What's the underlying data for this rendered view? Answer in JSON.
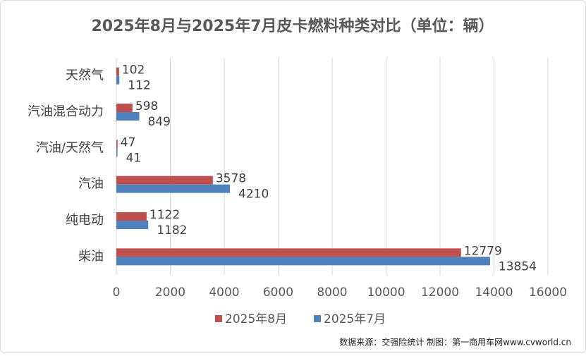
{
  "chart_data": {
    "type": "bar",
    "orientation": "horizontal",
    "title": "2025年8月与2025年7月皮卡燃料种类对比（单位：辆）",
    "categories": [
      "天然气",
      "汽油混合动力",
      "汽油/天然气",
      "汽油",
      "纯电动",
      "柴油"
    ],
    "series": [
      {
        "name": "2025年8月",
        "color": "#c0504d",
        "values": [
          102,
          598,
          47,
          3578,
          1122,
          12779
        ]
      },
      {
        "name": "2025年7月",
        "color": "#4f81bd",
        "values": [
          112,
          849,
          41,
          4210,
          1182,
          13854
        ]
      }
    ],
    "xlim": [
      0,
      16000
    ],
    "xticks": [
      0,
      2000,
      4000,
      6000,
      8000,
      10000,
      12000,
      14000,
      16000
    ],
    "grid": true,
    "legend": "bottom",
    "source": "数据来源：交强险统计 制图：第一商用车网www.cvworld.cn"
  }
}
